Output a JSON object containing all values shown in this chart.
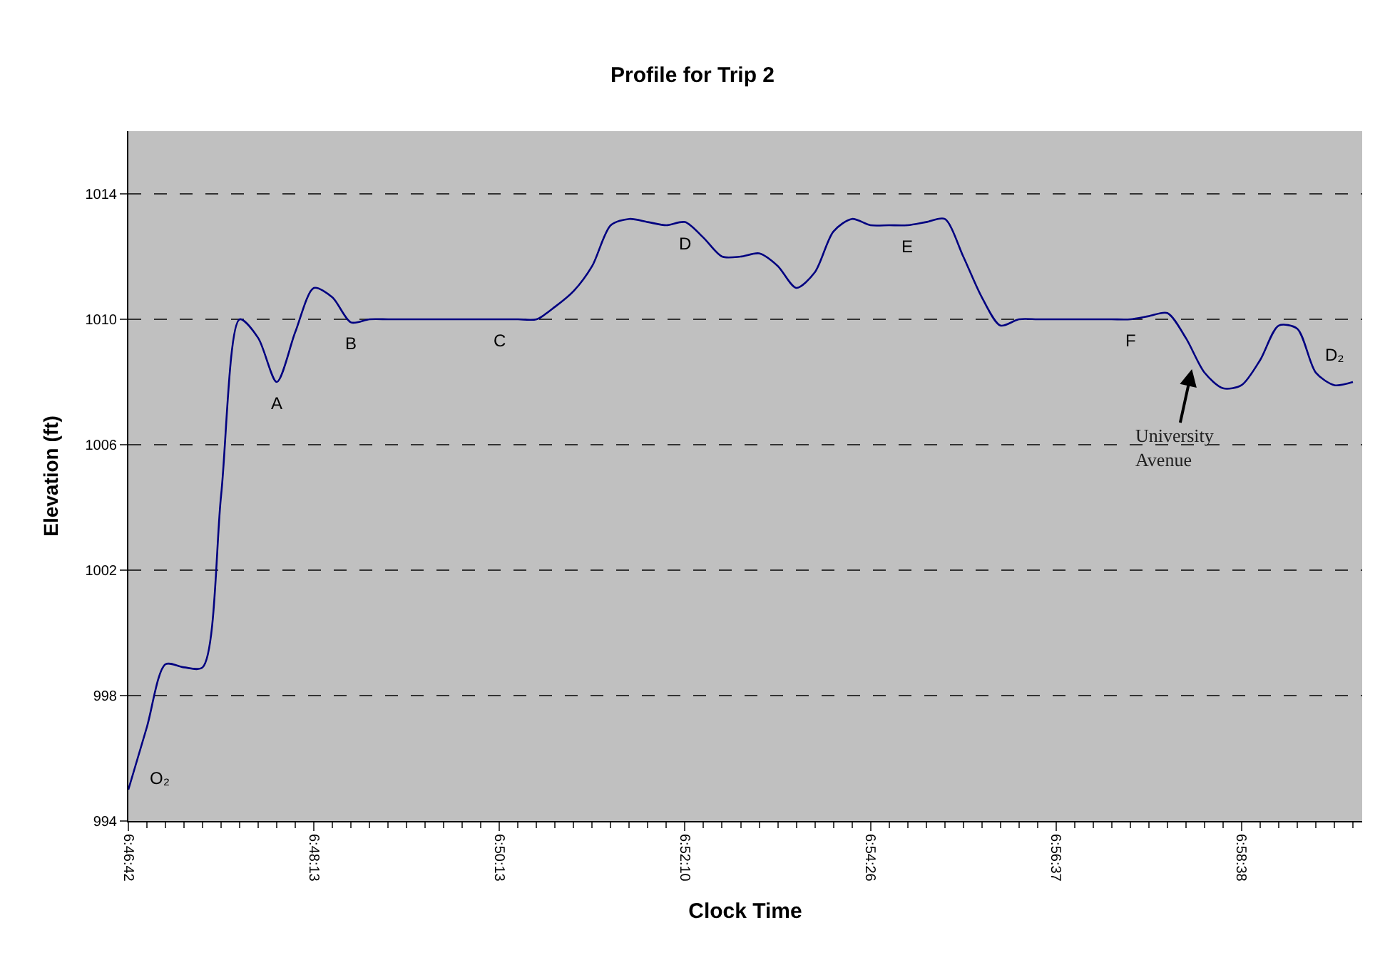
{
  "chart_data": {
    "type": "line",
    "title": "Profile for Trip 2",
    "xlabel": "Clock Time",
    "ylabel": "Elevation (ft)",
    "categories": [
      "6:46:42",
      null,
      null,
      null,
      null,
      null,
      null,
      null,
      null,
      null,
      "6:48:13",
      null,
      null,
      null,
      null,
      null,
      null,
      null,
      null,
      null,
      "6:50:13",
      null,
      null,
      null,
      null,
      null,
      null,
      null,
      null,
      null,
      "6:52:10",
      null,
      null,
      null,
      null,
      null,
      null,
      null,
      null,
      null,
      "6:54:26",
      null,
      null,
      null,
      null,
      null,
      null,
      null,
      null,
      null,
      "6:56:37",
      null,
      null,
      null,
      null,
      null,
      null,
      null,
      null,
      null,
      "6:58:38",
      null,
      null,
      null,
      null,
      null,
      null
    ],
    "series": [
      {
        "color": "#000080",
        "values": [
          995.0,
          997.0,
          999.0,
          998.9,
          998.9,
          1004.4,
          1010.0,
          1009.4,
          1008.0,
          1009.6,
          1011.0,
          1010.7,
          1009.9,
          1010.0,
          1010.0,
          1010.0,
          1010.0,
          1010.0,
          1010.0,
          1010.0,
          1010.0,
          1010.0,
          1010.0,
          1010.4,
          1010.9,
          1011.7,
          1013.0,
          1013.2,
          1013.1,
          1013.0,
          1013.1,
          1012.6,
          1012.0,
          1012.0,
          1012.1,
          1011.7,
          1011.0,
          1011.5,
          1012.8,
          1013.2,
          1013.0,
          1013.0,
          1013.0,
          1013.1,
          1013.2,
          1012.0,
          1010.7,
          1009.8,
          1010.0,
          1010.0,
          1010.0,
          1010.0,
          1010.0,
          1010.0,
          1010.0,
          1010.1,
          1010.2,
          1009.4,
          1008.3,
          1007.8,
          1007.9,
          1008.7,
          1009.8,
          1009.7,
          1008.3,
          1007.9,
          1008.0
        ],
        "value_labels": [
          "O₂",
          null,
          null,
          null,
          null,
          null,
          null,
          null,
          "A",
          null,
          null,
          null,
          "B",
          null,
          null,
          null,
          null,
          null,
          null,
          null,
          "C",
          null,
          null,
          null,
          null,
          null,
          null,
          null,
          null,
          null,
          "D",
          null,
          null,
          null,
          null,
          null,
          null,
          null,
          null,
          null,
          null,
          null,
          "E",
          null,
          null,
          null,
          null,
          null,
          null,
          null,
          null,
          null,
          null,
          null,
          "F",
          null,
          null,
          null,
          null,
          null,
          null,
          null,
          null,
          null,
          null,
          null,
          "D₂"
        ]
      }
    ],
    "ylim": [
      994,
      1016
    ],
    "yticks": [
      994,
      998,
      1002,
      1006,
      1010,
      1014
    ],
    "grid": "y",
    "annotations": [
      "University Avenue"
    ]
  }
}
